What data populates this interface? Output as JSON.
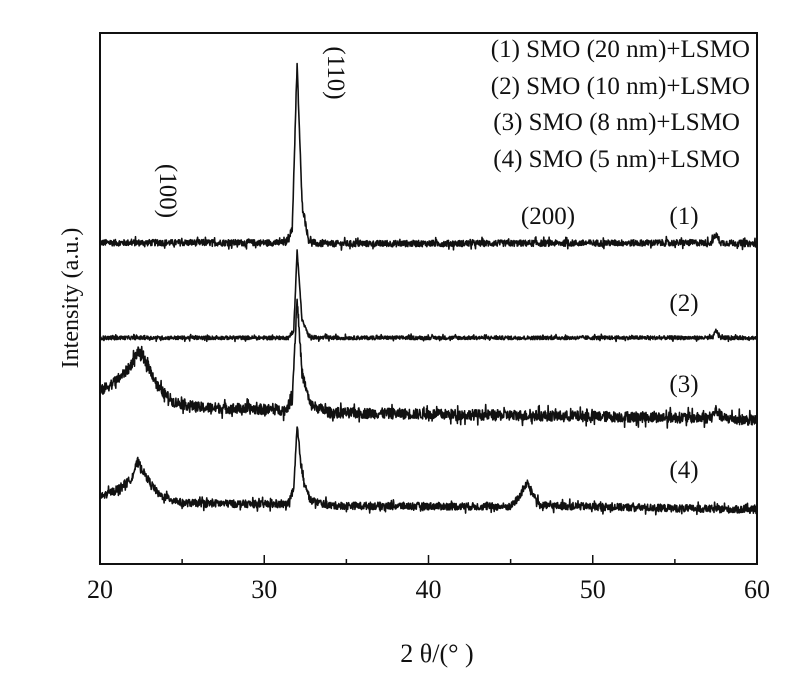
{
  "chart_data": {
    "type": "line",
    "title": "",
    "xlabel": "2 θ/(° )",
    "ylabel": "Intensity (a.u.)",
    "xlim": [
      20,
      60
    ],
    "ylim": [
      0,
      100
    ],
    "xticks": [
      20,
      30,
      40,
      50,
      60
    ],
    "xtick_labels": [
      "20",
      "30",
      "40",
      "50",
      "60"
    ],
    "grid": false,
    "legend_placement": "top-right",
    "legend": [
      "(1) SMO (20 nm)+LSMO",
      "(2) SMO (10 nm)+LSMO",
      "(3) SMO (8 nm)+LSMO",
      "(4) SMO (5 nm)+LSMO"
    ],
    "annotations": {
      "peak_100": "(100)",
      "peak_110": "(110)",
      "peak_200": "(200)"
    },
    "series": [
      {
        "name": "(1)",
        "label": "(1)",
        "noise": 0.6,
        "points": [
          [
            20,
            60.5
          ],
          [
            31.3,
            60.5
          ],
          [
            31.7,
            63
          ],
          [
            32.0,
            94
          ],
          [
            32.3,
            68
          ],
          [
            32.7,
            61
          ],
          [
            33.2,
            60.3
          ],
          [
            57.2,
            60.5
          ],
          [
            57.5,
            62
          ],
          [
            57.8,
            60.5
          ],
          [
            60,
            60.3
          ]
        ]
      },
      {
        "name": "(2)",
        "label": "(2)",
        "noise": 0.35,
        "points": [
          [
            20,
            42.6
          ],
          [
            31.5,
            42.6
          ],
          [
            31.8,
            44
          ],
          [
            32.0,
            59
          ],
          [
            32.3,
            46
          ],
          [
            32.7,
            43
          ],
          [
            33.2,
            42.6
          ],
          [
            57.3,
            42.6
          ],
          [
            57.5,
            44
          ],
          [
            57.8,
            42.6
          ],
          [
            60,
            42.6
          ]
        ]
      },
      {
        "name": "(3)",
        "label": "(3)",
        "noise": 1.0,
        "points": [
          [
            20,
            32.5
          ],
          [
            21,
            34.5
          ],
          [
            21.8,
            37
          ],
          [
            22.3,
            40
          ],
          [
            22.9,
            37.5
          ],
          [
            23.6,
            33
          ],
          [
            24.5,
            30.5
          ],
          [
            26,
            29.5
          ],
          [
            31.3,
            29
          ],
          [
            31.7,
            31
          ],
          [
            32.0,
            50
          ],
          [
            32.3,
            36
          ],
          [
            32.8,
            30
          ],
          [
            34,
            28.5
          ],
          [
            45,
            28
          ],
          [
            57.2,
            27.5
          ],
          [
            57.5,
            29
          ],
          [
            57.9,
            27.5
          ],
          [
            60,
            27
          ]
        ]
      },
      {
        "name": "(4)",
        "label": "(4)",
        "noise": 0.7,
        "points": [
          [
            20,
            12.6
          ],
          [
            21,
            14
          ],
          [
            21.9,
            16
          ],
          [
            22.3,
            19.4
          ],
          [
            22.8,
            16.5
          ],
          [
            23.6,
            13
          ],
          [
            25,
            11.5
          ],
          [
            31.4,
            11.2
          ],
          [
            31.8,
            14
          ],
          [
            32.0,
            25.8
          ],
          [
            32.3,
            17
          ],
          [
            32.8,
            12
          ],
          [
            34,
            11
          ],
          [
            45,
            10.8
          ],
          [
            45.5,
            12.5
          ],
          [
            46.0,
            15.3
          ],
          [
            46.4,
            13
          ],
          [
            46.8,
            11
          ],
          [
            60,
            10.2
          ]
        ]
      }
    ]
  }
}
